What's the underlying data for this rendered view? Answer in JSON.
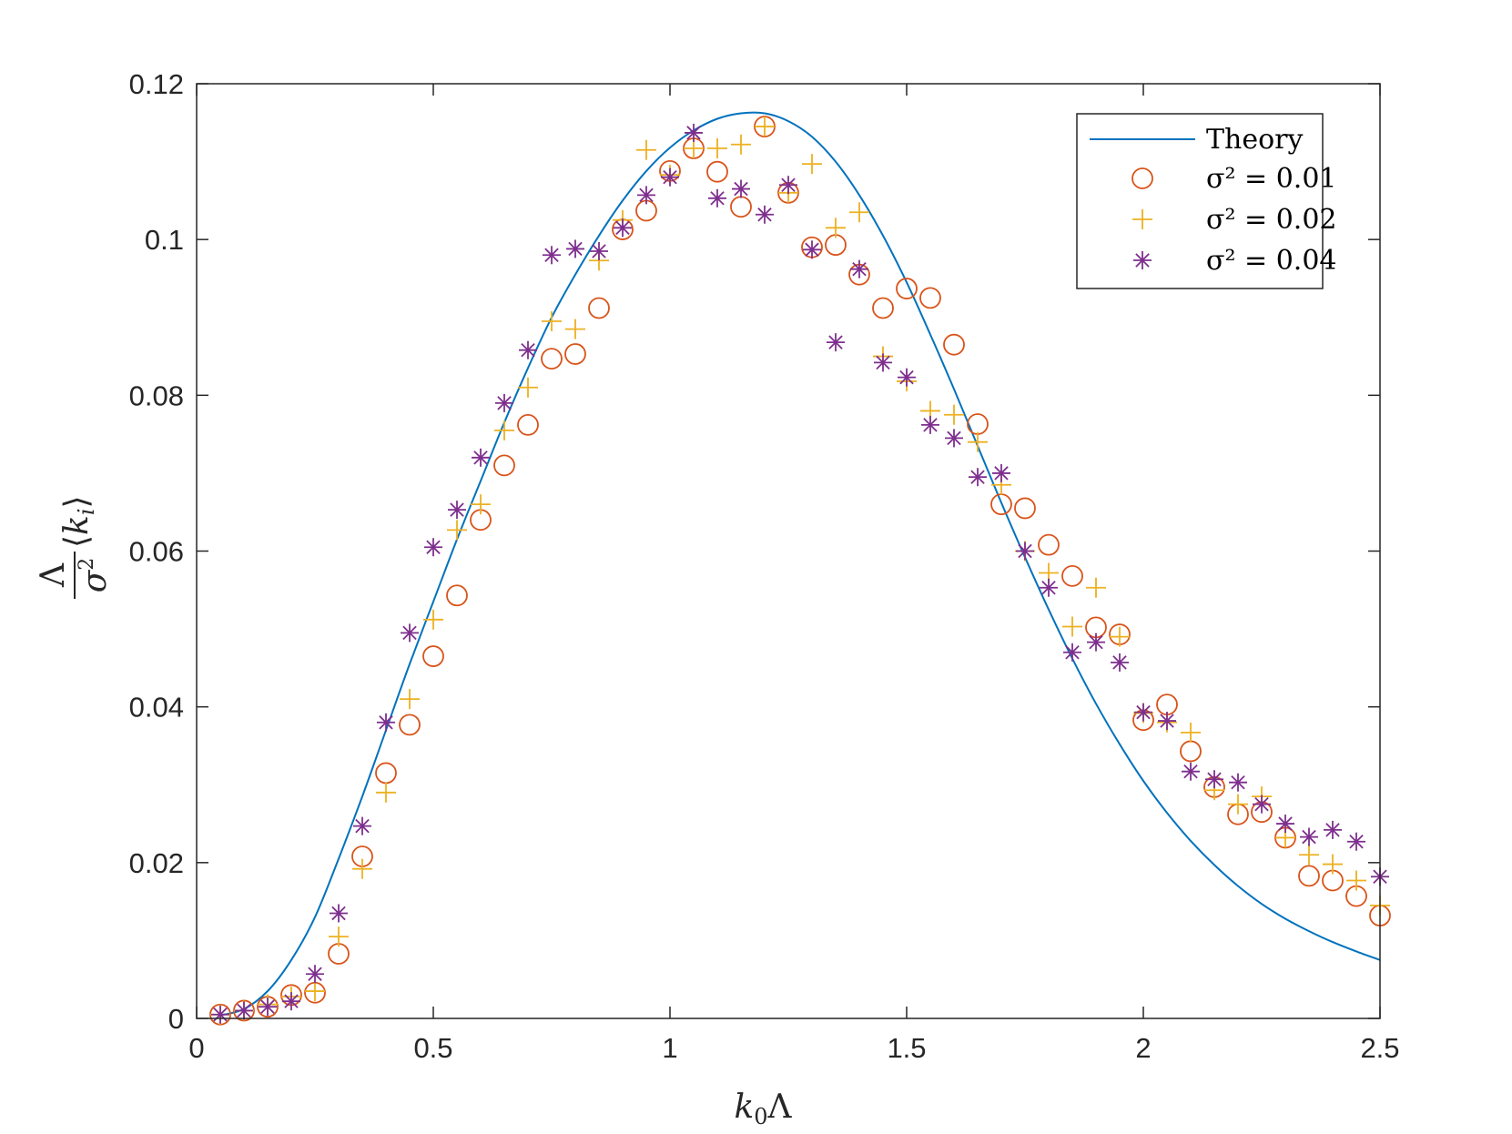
{
  "chart_data": {
    "type": "scatter",
    "xlabel": "k0Λ",
    "ylabel": "Λ/σ² ⟨ki⟩",
    "xlim": [
      0,
      2.5
    ],
    "ylim": [
      0,
      0.12
    ],
    "xticks": [
      0,
      0.5,
      1,
      1.5,
      2,
      2.5
    ],
    "xtick_labels": [
      "0",
      "0.5",
      "1",
      "1.5",
      "2",
      "2.5"
    ],
    "yticks": [
      0,
      0.02,
      0.04,
      0.06,
      0.08,
      0.1,
      0.12
    ],
    "ytick_labels": [
      "0",
      "0.02",
      "0.04",
      "0.06",
      "0.08",
      "0.1",
      "0.12"
    ],
    "grid": false,
    "legend_position": "top-right",
    "x": [
      0.05,
      0.1,
      0.15,
      0.2,
      0.25,
      0.3,
      0.35,
      0.4,
      0.45,
      0.5,
      0.55,
      0.6,
      0.65,
      0.7,
      0.75,
      0.8,
      0.85,
      0.9,
      0.95,
      1.0,
      1.05,
      1.1,
      1.15,
      1.2,
      1.25,
      1.3,
      1.35,
      1.4,
      1.45,
      1.5,
      1.55,
      1.6,
      1.65,
      1.7,
      1.75,
      1.8,
      1.85,
      1.9,
      1.95,
      2.0,
      2.05,
      2.1,
      2.15,
      2.2,
      2.25,
      2.3,
      2.35,
      2.4,
      2.45,
      2.5
    ],
    "theory": {
      "name": "Theory",
      "color": "#0072BD",
      "x": [
        0.05,
        0.1,
        0.15,
        0.2,
        0.25,
        0.3,
        0.35,
        0.4,
        0.45,
        0.5,
        0.55,
        0.6,
        0.65,
        0.7,
        0.75,
        0.8,
        0.85,
        0.9,
        0.95,
        1.0,
        1.05,
        1.1,
        1.15,
        1.2,
        1.25,
        1.3,
        1.35,
        1.4,
        1.45,
        1.5,
        1.55,
        1.6,
        1.65,
        1.7,
        1.75,
        1.8,
        1.85,
        1.9,
        1.95,
        2.0,
        2.05,
        2.1,
        2.15,
        2.2,
        2.25,
        2.3,
        2.35,
        2.4,
        2.45,
        2.5
      ],
      "values": [
        0.0004,
        0.0012,
        0.0035,
        0.0075,
        0.013,
        0.0205,
        0.0285,
        0.037,
        0.0455,
        0.0535,
        0.0615,
        0.069,
        0.0765,
        0.0835,
        0.09,
        0.0955,
        0.1005,
        0.105,
        0.1088,
        0.1118,
        0.114,
        0.1155,
        0.1162,
        0.1162,
        0.1152,
        0.1132,
        0.11,
        0.1057,
        0.1005,
        0.0945,
        0.0878,
        0.0808,
        0.0735,
        0.0662,
        0.0592,
        0.0525,
        0.0462,
        0.0404,
        0.0352,
        0.0305,
        0.0264,
        0.0228,
        0.0197,
        0.017,
        0.0147,
        0.0128,
        0.0112,
        0.0098,
        0.0086,
        0.0075
      ]
    },
    "series": [
      {
        "name": "σ² = 0.01",
        "marker": "circle",
        "color": "#D95319",
        "values": [
          0.0005,
          0.001,
          0.0015,
          0.003,
          0.0033,
          0.0083,
          0.0208,
          0.0315,
          0.0377,
          0.0465,
          0.0543,
          0.064,
          0.071,
          0.0762,
          0.0847,
          0.0853,
          0.0912,
          0.1013,
          0.1037,
          0.1088,
          0.1117,
          0.1087,
          0.1042,
          0.1145,
          0.106,
          0.099,
          0.0993,
          0.0955,
          0.0912,
          0.0937,
          0.0925,
          0.0865,
          0.0763,
          0.066,
          0.0655,
          0.0608,
          0.0568,
          0.0502,
          0.0493,
          0.0383,
          0.0403,
          0.0343,
          0.0297,
          0.0262,
          0.0265,
          0.0232,
          0.0183,
          0.0177,
          0.0157,
          0.0132
        ]
      },
      {
        "name": "σ² = 0.02",
        "marker": "plus",
        "color": "#EDB120",
        "values": [
          0.0005,
          0.001,
          0.0018,
          0.0028,
          0.0035,
          0.0105,
          0.0192,
          0.029,
          0.041,
          0.0512,
          0.0627,
          0.066,
          0.0755,
          0.081,
          0.0895,
          0.0885,
          0.0973,
          0.1025,
          0.1115,
          0.1083,
          0.1117,
          0.1117,
          0.1122,
          0.1145,
          0.106,
          0.1097,
          0.1015,
          0.1035,
          0.085,
          0.0818,
          0.078,
          0.0775,
          0.074,
          0.0685,
          0.06,
          0.0572,
          0.0503,
          0.0553,
          0.049,
          0.0392,
          0.038,
          0.0367,
          0.0293,
          0.0275,
          0.0285,
          0.0232,
          0.021,
          0.0198,
          0.0177,
          0.0145
        ]
      },
      {
        "name": "σ² = 0.04",
        "marker": "asterisk",
        "color": "#7E2F8E",
        "values": [
          0.0005,
          0.001,
          0.0015,
          0.0022,
          0.0057,
          0.0135,
          0.0247,
          0.038,
          0.0495,
          0.0605,
          0.0653,
          0.072,
          0.079,
          0.0858,
          0.098,
          0.0988,
          0.0985,
          0.1015,
          0.1057,
          0.108,
          0.1137,
          0.1053,
          0.1065,
          0.1032,
          0.107,
          0.0987,
          0.0868,
          0.0962,
          0.0842,
          0.0823,
          0.0762,
          0.0745,
          0.0695,
          0.07,
          0.06,
          0.0553,
          0.047,
          0.0483,
          0.0457,
          0.0393,
          0.0382,
          0.0317,
          0.0307,
          0.0303,
          0.0275,
          0.025,
          0.0233,
          0.0242,
          0.0227,
          0.0182
        ]
      }
    ]
  }
}
